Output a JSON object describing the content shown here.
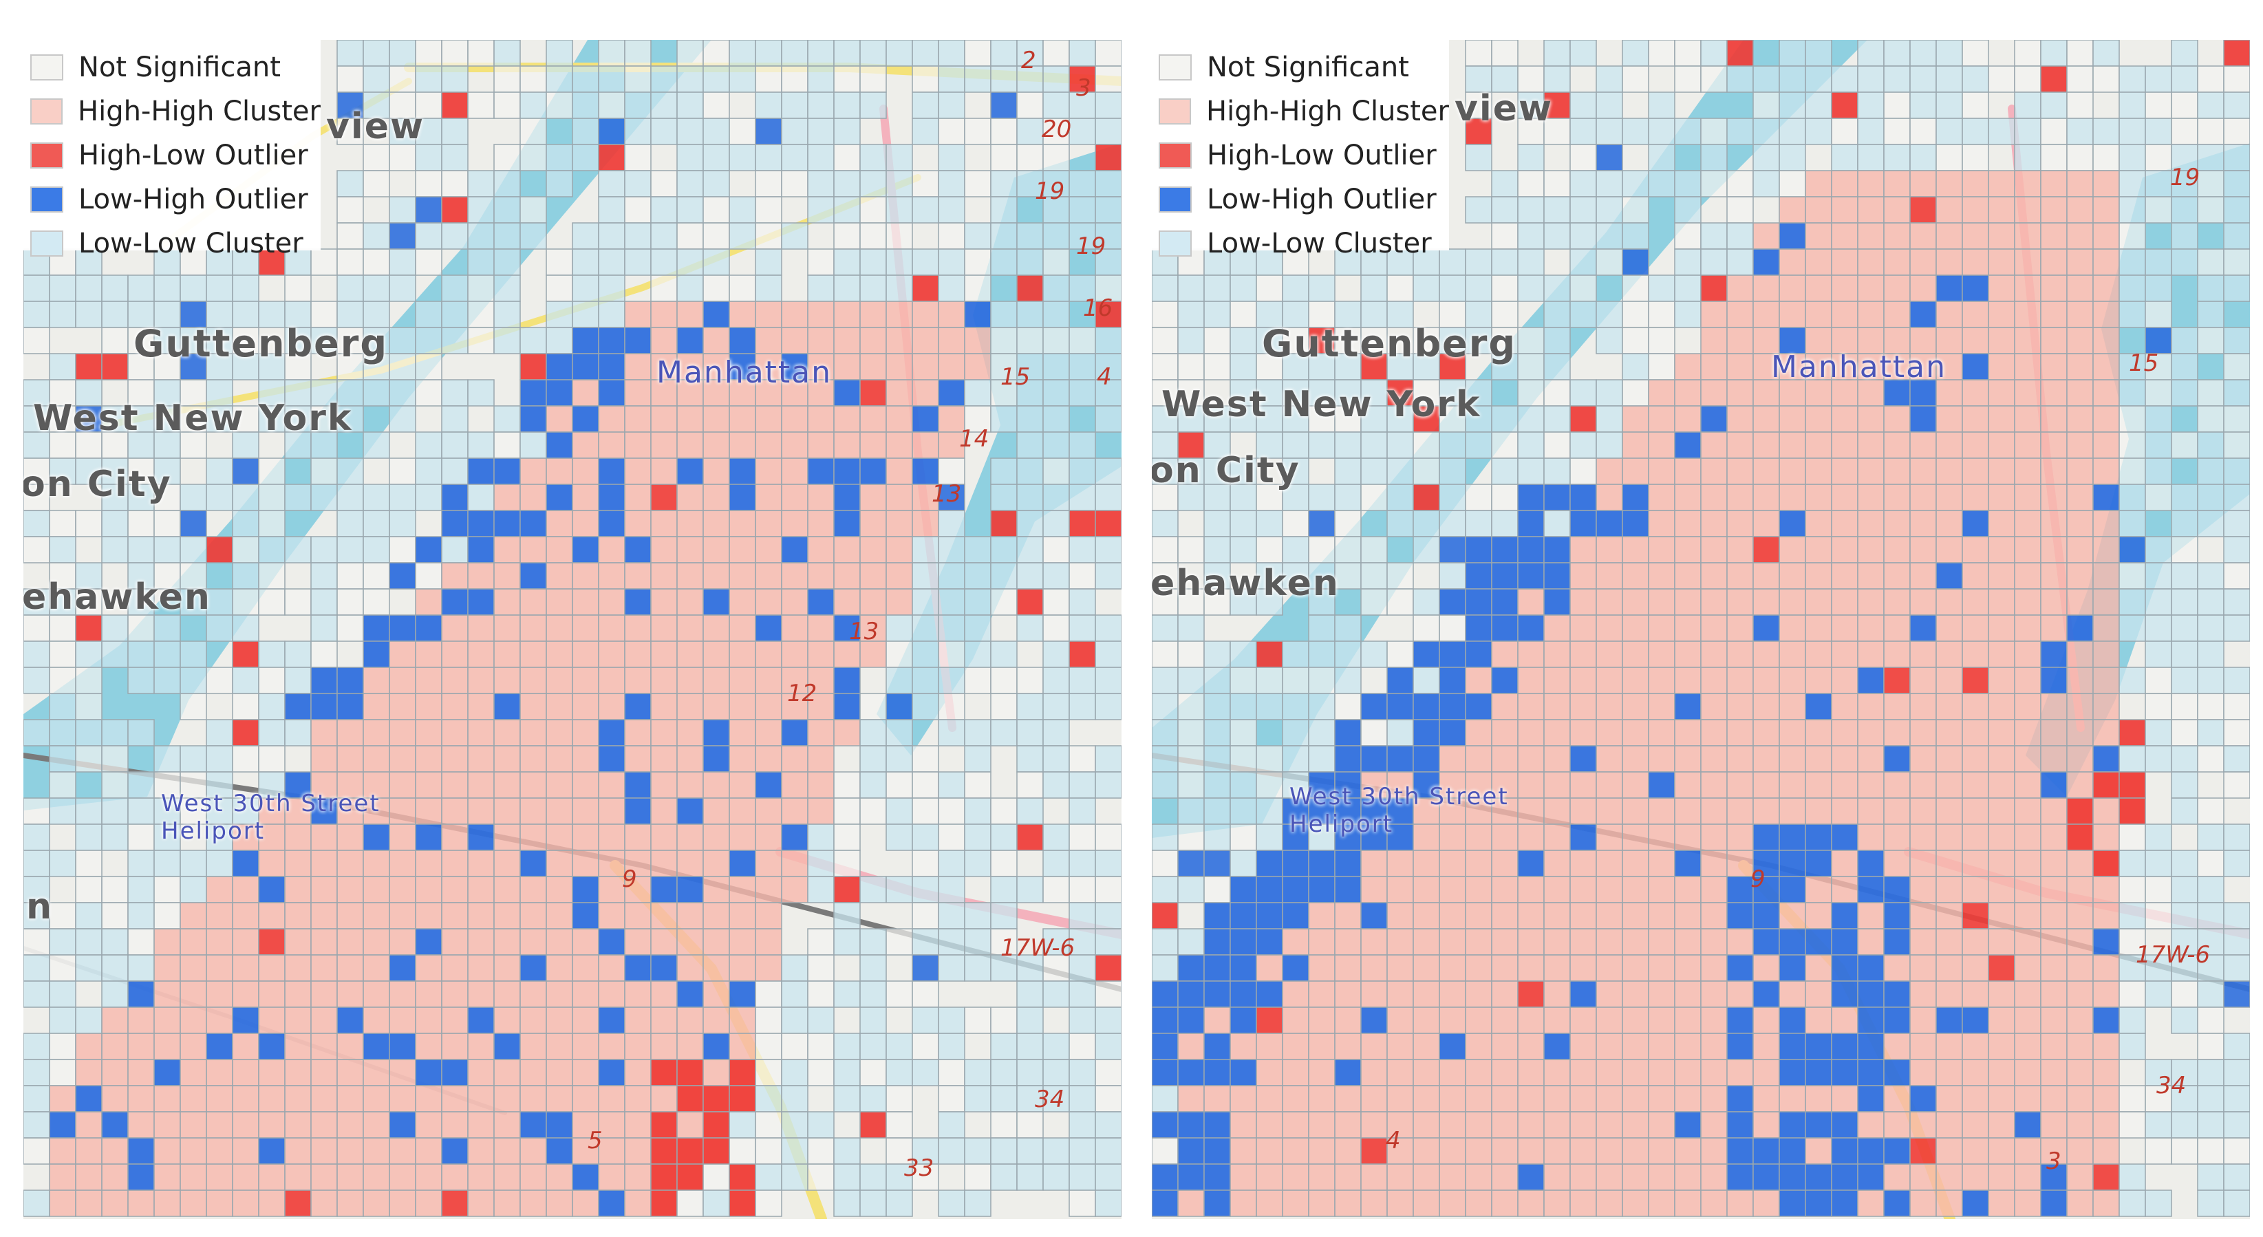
{
  "colors": {
    "not_significant": "#f4f4f1",
    "high_high": "#f7b8ad",
    "high_low": "#ef3b36",
    "low_high": "#2f6fde",
    "low_low": "#c9e6ef",
    "water": "#8fd0e0",
    "land": "#eeeeea",
    "road_yellow": "#f4e27a",
    "road_pink": "#f4b2bd",
    "grid_stroke": "#9aa7ae"
  },
  "legend": {
    "items": [
      {
        "label": "Not Significant",
        "color": "#f4f4f1"
      },
      {
        "label": "High-High Cluster",
        "color": "#f9cfc6"
      },
      {
        "label": "High-Low Outlier",
        "color": "#f05a55"
      },
      {
        "label": "Low-High Outlier",
        "color": "#3b7be6"
      },
      {
        "label": "Low-Low Cluster",
        "color": "#d3eaf3"
      }
    ]
  },
  "left_map": {
    "labels": {
      "guttenberg": "Guttenberg",
      "west_new_york": "West New York",
      "union_city": "on City",
      "weehawken": "ehawken",
      "fairview": "view",
      "manhattan": "Manhattan",
      "heliport": "West 30th Street Heliport",
      "n_edge": "n"
    },
    "road_numbers": [
      "2",
      "3",
      "20",
      "19",
      "19",
      "16",
      "15",
      "14",
      "13",
      "13",
      "12",
      "9",
      "5",
      "17W-6",
      "34",
      "33",
      "4"
    ]
  },
  "right_map": {
    "labels": {
      "guttenberg": "Guttenberg",
      "west_new_york": "West New York",
      "union_city": "on City",
      "weehawken": "ehawken",
      "fairview": "view",
      "manhattan": "Manhattan",
      "heliport": "West 30th Street Heliport"
    },
    "road_numbers": [
      "19",
      "15",
      "9",
      "17W-6",
      "34",
      "4",
      "3"
    ]
  }
}
